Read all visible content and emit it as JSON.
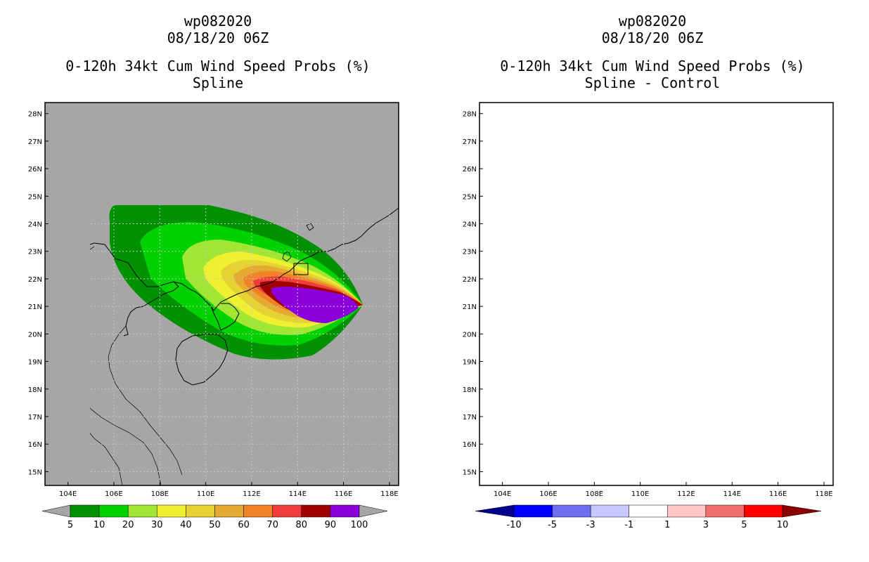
{
  "left_panel": {
    "storm_id": "wp082020",
    "datetime": "08/18/20 06Z",
    "title": "0-120h 34kt Cum Wind Speed Probs (%)",
    "subtitle": "Spline",
    "colorbar": {
      "labels": [
        "5",
        "10",
        "20",
        "30",
        "40",
        "50",
        "60",
        "70",
        "80",
        "90",
        "100"
      ],
      "colors": [
        "#a6a6a6",
        "#009100",
        "#00d200",
        "#a0e632",
        "#f0f032",
        "#e6d232",
        "#e6aa32",
        "#f08228",
        "#f03c3c",
        "#a00000",
        "#8c00dc",
        "#a6a6a6"
      ]
    }
  },
  "right_panel": {
    "storm_id": "wp082020",
    "datetime": "08/18/20 06Z",
    "title": "0-120h 34kt Cum Wind Speed Probs (%)",
    "subtitle": "Spline - Control",
    "colorbar": {
      "labels": [
        "-10",
        "-5",
        "-3",
        "-1",
        "1",
        "3",
        "5",
        "10"
      ],
      "colors": [
        "#00008c",
        "#0000ff",
        "#6e6ef0",
        "#c8c8ff",
        "#ffffff",
        "#ffc8c8",
        "#f06e6e",
        "#ff0000",
        "#8c0000"
      ]
    }
  },
  "axes": {
    "lat_labels": [
      "28N",
      "27N",
      "26N",
      "25N",
      "24N",
      "23N",
      "22N",
      "21N",
      "20N",
      "19N",
      "18N",
      "17N",
      "16N",
      "15N"
    ],
    "lon_labels": [
      "104E",
      "106E",
      "108E",
      "110E",
      "112E",
      "114E",
      "116E",
      "118E"
    ],
    "lon_range": [
      103,
      118.4
    ],
    "lat_range": [
      14.5,
      28.4
    ]
  },
  "map": {
    "background_left": "#a6a6a6",
    "background_right": "#ffffff"
  }
}
